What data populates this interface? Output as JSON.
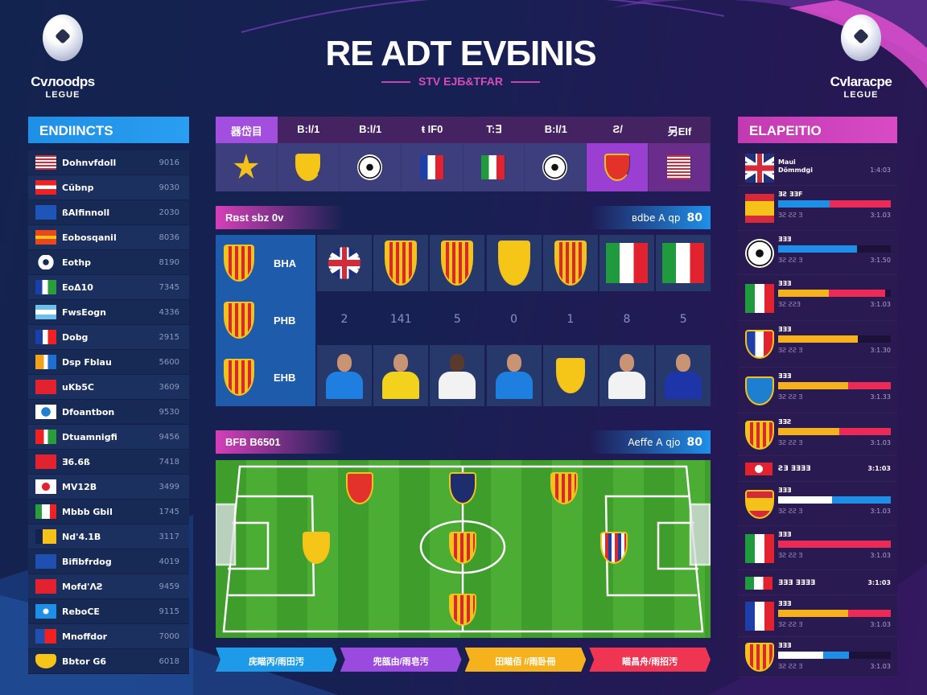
{
  "header": {
    "title": "RE ADT EVБINIS",
    "subtitle": "STV EJБ&TFAR"
  },
  "logos": {
    "left": {
      "name": "Cvлoodps",
      "sub": "LEGUE"
    },
    "right": {
      "name": "Cvlaracpe",
      "sub": "LEGUE"
    }
  },
  "left_panel": {
    "title": "ENDIINCTS",
    "rows": [
      {
        "icon": "flag-usa",
        "name": "Dohnvfdoll",
        "value": "9016"
      },
      {
        "icon": "flag-red-white",
        "name": "Cŭbnp",
        "value": "9030"
      },
      {
        "icon": "flag-blue-fish",
        "name": "ßAlfinnoll",
        "value": "2030"
      },
      {
        "icon": "flag-orange-yellow",
        "name": "Eobosqanil",
        "value": "8036"
      },
      {
        "icon": "gear",
        "name": "Eothp",
        "value": "8190"
      },
      {
        "icon": "flag-blue-white-green",
        "name": "EoΔ10",
        "value": "7345"
      },
      {
        "icon": "flag-argentina",
        "name": "FwsEogn",
        "value": "4336"
      },
      {
        "icon": "flag-blue-red-white",
        "name": "Dobg",
        "value": "2915"
      },
      {
        "icon": "flag-yellow-orange",
        "name": "Dsp Fblau",
        "value": "5600"
      },
      {
        "icon": "flag-red",
        "name": "uKb5C",
        "value": "3609"
      },
      {
        "icon": "flag-white-blue-circle",
        "name": "Dfoantbon",
        "value": "9530"
      },
      {
        "icon": "flag-red-green",
        "name": "Dtuamnigfi",
        "value": "9456"
      },
      {
        "icon": "flag-red",
        "name": "Ǝ6.6ß",
        "value": "7418"
      },
      {
        "icon": "flag-japan",
        "name": "MV12B",
        "value": "3499"
      },
      {
        "icon": "flag-green-white",
        "name": "Mbbb Gbil",
        "value": "1745"
      },
      {
        "icon": "flag-yellow-navy",
        "name": "Nd'4.1B",
        "value": "3117"
      },
      {
        "icon": "flag-blue",
        "name": "Bifibfrdog",
        "value": "4019"
      },
      {
        "icon": "flag-red",
        "name": "Mofd'ΛƧ",
        "value": "9459"
      },
      {
        "icon": "flag-blue-circle",
        "name": "ReboCE",
        "value": "9115"
      },
      {
        "icon": "flag-red-blue",
        "name": "Mnoffdor",
        "value": "7000"
      },
      {
        "icon": "crest-yellow",
        "name": "Bbtor G6",
        "value": "6018"
      }
    ]
  },
  "table": {
    "headers": [
      "器岱目",
      "B:l/1",
      "B:l/1",
      "ŧ IF0",
      "T:∃",
      "B:l/1",
      "Ƨ/",
      "另EIf"
    ],
    "icons": [
      "star",
      "crest-yellow",
      "ball",
      "flag-france",
      "flag-italy",
      "ball",
      "crest-red",
      "flag-usa"
    ]
  },
  "banner1": {
    "left": "Rʙst sbz 0v",
    "right": "ʙdbe A qp",
    "num": "80"
  },
  "grid": {
    "row_labels": [
      "BHA",
      "PHB",
      "EHB"
    ],
    "row1": [
      "flag-uk-round",
      "crest-catalan",
      "crest-catalan",
      "crest-yellow",
      "crest-catalan",
      "flag-italy",
      "flag-italy"
    ],
    "numbers": [
      "2",
      "141",
      "5",
      "0",
      "1",
      "8",
      "5"
    ],
    "row3": [
      "player-blue",
      "player-yellow",
      "player-white-dark",
      "player-blue",
      "crest-yellow",
      "player-white",
      "player-navy"
    ]
  },
  "banner2": {
    "left": "BFB B6501",
    "right": "Aeffe A qjo",
    "num": "80"
  },
  "pitch": {
    "crests": [
      "crest-red",
      "crest-navy",
      "crest-catalan",
      "crest-yellow",
      "crest-catalan",
      "crest-striped",
      "crest-catalan"
    ]
  },
  "tags": [
    {
      "label": "庑瞄丙/雨田汚",
      "color": "#1e9be8"
    },
    {
      "label": "兜瓿由/雨皂汚",
      "color": "#9b4ae0"
    },
    {
      "label": "田瞄佰 //雨卧冊",
      "color": "#f5b21c"
    },
    {
      "label": "瞄昌舟/雨招汚",
      "color": "#ef3552"
    }
  ],
  "right_panel": {
    "title": "ELAPEITIO",
    "rows": [
      {
        "icon": "flag-uk",
        "title": "Maui",
        "sub": "Dŏmmdgi",
        "value": "1:4:03"
      },
      {
        "icon": "flag-spain",
        "title": "ƎƧ ƎƎF",
        "sub": "ƎƧ ƧƧ Ǝ",
        "value": "3:1.03",
        "bars": [
          {
            "c": "#1e8fe6",
            "f": 0.46
          },
          {
            "c": "#ec2a56",
            "f": 0.54
          }
        ]
      },
      {
        "icon": "ball",
        "title": "ƎƎƎ",
        "sub": "ƎƧ ƧƧ Ǝ",
        "value": "3:1.50",
        "bars": [
          {
            "c": "#1e8fe6",
            "f": 0.7
          }
        ]
      },
      {
        "icon": "flag-italy",
        "title": "ƎƎƎ",
        "sub": "ƎƧ ƧƧƎ",
        "value": "3:1.03",
        "bars": [
          {
            "c": "#f5b21c",
            "f": 0.45
          },
          {
            "c": "#ec2a56",
            "f": 0.5
          }
        ]
      },
      {
        "icon": "crest-tricolor",
        "title": "ƎƎƎ",
        "sub": "ƎƧ ƧƧ Ǝ",
        "value": "3:1.30",
        "bars": [
          {
            "c": "#f5b21c",
            "f": 0.71
          }
        ]
      },
      {
        "icon": "crest-blue",
        "title": "ƎƎƎ",
        "sub": "ƎƧ ƧƧ Ǝ",
        "value": "3:1.33",
        "bars": [
          {
            "c": "#f5b21c",
            "f": 0.62
          },
          {
            "c": "#ec2a56",
            "f": 0.38
          }
        ]
      },
      {
        "icon": "crest-catalan",
        "title": "ƎƎƧ",
        "sub": "ƎƧ ƧƧ Ǝ",
        "value": "3:1.03",
        "bars": [
          {
            "c": "#f5b21c",
            "f": 0.54
          },
          {
            "c": "#ec2a56",
            "f": 0.46
          }
        ]
      },
      {
        "icon": "flag-red-badge",
        "title": "ƧƎ ƎƎƎƎ",
        "value": "3:1:03",
        "compact": true
      },
      {
        "icon": "crest-spain",
        "title": "ƎƎƎ",
        "sub": "ƎƧ ƧƧ Ǝ",
        "value": "3:1.03",
        "bars": [
          {
            "c": "#ffffff",
            "f": 0.48
          },
          {
            "c": "#1e8fe6",
            "f": 0.52
          }
        ]
      },
      {
        "icon": "flag-italy",
        "title": "ƎƎƎ",
        "sub": "ƎƧ ƧƧ Ǝ",
        "value": "3:1.03",
        "bars": [
          {
            "c": "#ec2a56",
            "f": 1
          }
        ]
      },
      {
        "icon": "flag-mexico",
        "title": "ƎƎƎ ƎƎƎƎ",
        "value": "3:1:03",
        "compact": true
      },
      {
        "icon": "flag-france-crest",
        "title": "ƎƎƎ",
        "sub": "ƎƧ ƧƧ Ǝ",
        "value": "3:1.03",
        "bars": [
          {
            "c": "#f5b21c",
            "f": 0.62
          },
          {
            "c": "#ec2a56",
            "f": 0.38
          }
        ]
      },
      {
        "icon": "crest-catalan",
        "title": "ƎƎƎ",
        "sub": "ƎƧ ƧƧ Ǝ",
        "value": "3:1.03",
        "bars": [
          {
            "c": "#ffffff",
            "f": 0.4
          },
          {
            "c": "#1e8fe6",
            "f": 0.23
          }
        ]
      }
    ]
  }
}
